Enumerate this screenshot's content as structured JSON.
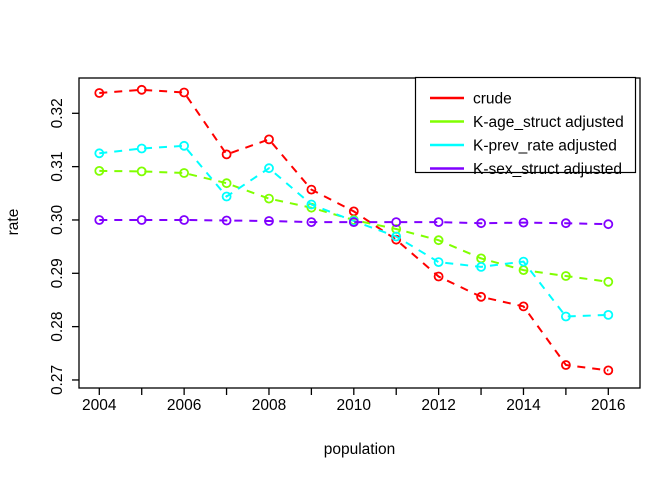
{
  "figure": {
    "background": "#ffffff",
    "x_axis_title": "population",
    "y_axis_title": "rate"
  },
  "chart_data": {
    "type": "line",
    "title": "",
    "xlabel": "population",
    "ylabel": "rate",
    "grid": false,
    "legend_position": "top-right",
    "line_style": "dashed",
    "marker": "open-circle",
    "xlim": [
      2003.5,
      2016.5
    ],
    "ylim": [
      0.2685,
      0.3266
    ],
    "x": [
      2004,
      2005,
      2006,
      2007,
      2008,
      2009,
      2010,
      2011,
      2012,
      2013,
      2014,
      2015,
      2016
    ],
    "x_ticks": [
      2004,
      2005,
      2006,
      2007,
      2008,
      2009,
      2010,
      2011,
      2012,
      2013,
      2014,
      2015,
      2016
    ],
    "x_tick_labels": [
      "2004",
      "",
      "2006",
      "",
      "2008",
      "",
      "2010",
      "",
      "2012",
      "",
      "2014",
      "",
      "2016"
    ],
    "y_ticks": [
      0.27,
      0.28,
      0.29,
      0.3,
      0.31,
      0.32
    ],
    "y_tick_labels": [
      "0.27",
      "0.28",
      "0.29",
      "0.30",
      "0.31",
      "0.32"
    ],
    "series": [
      {
        "name": "crude",
        "color": "#FF0000",
        "values": [
          0.3238,
          0.3244,
          0.3239,
          0.3123,
          0.3151,
          0.3057,
          0.3016,
          0.2963,
          0.2894,
          0.2856,
          0.2838,
          0.2728,
          0.2718
        ]
      },
      {
        "name": "K-age_struct adjusted",
        "color": "#80FF00",
        "values": [
          0.3092,
          0.3091,
          0.3088,
          0.3069,
          0.304,
          0.3023,
          0.3,
          0.2983,
          0.2962,
          0.2928,
          0.2906,
          0.2895,
          0.2884
        ]
      },
      {
        "name": "K-prev_rate adjusted",
        "color": "#00FFFF",
        "values": [
          0.3125,
          0.3134,
          0.3139,
          0.3044,
          0.3097,
          0.3029,
          0.2998,
          0.2969,
          0.2921,
          0.2912,
          0.2922,
          0.2819,
          0.2822
        ]
      },
      {
        "name": "K-sex_struct adjusted",
        "color": "#8000FF",
        "values": [
          0.3,
          0.3,
          0.3,
          0.2999,
          0.2998,
          0.2996,
          0.2996,
          0.2996,
          0.2996,
          0.2994,
          0.2995,
          0.2994,
          0.2992
        ]
      }
    ]
  }
}
